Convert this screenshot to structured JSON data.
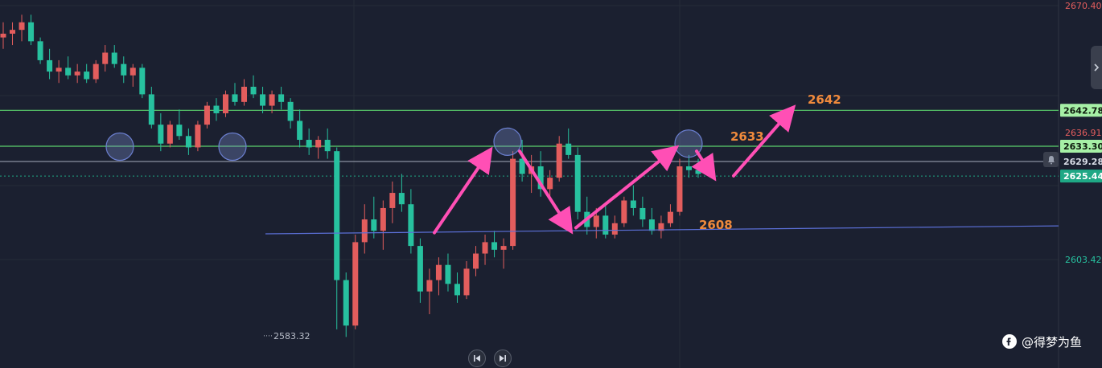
{
  "chart_data": {
    "type": "candlestick",
    "instrument_price_scale": {
      "ylim": [
        2578,
        2672
      ]
    },
    "price_axis_ticks": [
      {
        "value": 2670.4,
        "label": "2670.40",
        "color": "#e35d5d"
      },
      {
        "value": 2636.91,
        "label": "2636.91",
        "color": "#e35d5d"
      },
      {
        "value": 2603.42,
        "label": "2603.42",
        "color": "#27c19f"
      }
    ],
    "price_tags": [
      {
        "value": 2642.78,
        "label": "2642.78",
        "bg": "#a6f0a6",
        "fg": "#0d1a0d"
      },
      {
        "value": 2633.3,
        "label": "2633.30",
        "bg": "#a6f0a6",
        "fg": "#0d1a0d"
      },
      {
        "value": 2629.28,
        "label": "2629.28",
        "bg": "#1b2030",
        "fg": "#d8dce6"
      },
      {
        "value": 2625.44,
        "label": "2625.44",
        "bg": "#1fa885",
        "fg": "#ffffff"
      }
    ],
    "horizontal_levels": [
      {
        "value": 2642.78,
        "color": "#5bd06b"
      },
      {
        "value": 2633.3,
        "color": "#5bd06b"
      },
      {
        "value": 2629.28,
        "color": "#8a90a0"
      }
    ],
    "current_price_line": {
      "value": 2625.44,
      "color": "#1fa885"
    },
    "low_marker": {
      "value": 2583.32,
      "label": "2583.32"
    },
    "trendline": {
      "from": {
        "bar": 0,
        "price": 2610.2
      },
      "to": {
        "bar": 1,
        "price": 2612.3
      },
      "color": "#5b6fd6"
    },
    "annotations": [
      {
        "text": "2642",
        "price": 2644.5
      },
      {
        "text": "2633",
        "price": 2634.8
      },
      {
        "text": "2608",
        "price": 2611.5
      }
    ],
    "annotation_color": "#f08a3c",
    "arrow_color": "#ff4fb5",
    "circle_markers": [
      {
        "price": 2633.2
      },
      {
        "price": 2633.2
      },
      {
        "price": 2634.5
      },
      {
        "price": 2634.0
      }
    ],
    "candles": {
      "up_color": "#e35d5d",
      "down_color": "#27c19f",
      "ohlc": [
        [
          2662,
          2666,
          2659,
          2663
        ],
        [
          2663,
          2666,
          2660,
          2664
        ],
        [
          2664,
          2668,
          2661,
          2666
        ],
        [
          2666,
          2668,
          2660,
          2661
        ],
        [
          2661,
          2662,
          2655,
          2656
        ],
        [
          2656,
          2659,
          2651,
          2653
        ],
        [
          2653,
          2656,
          2650,
          2654
        ],
        [
          2654,
          2657,
          2651,
          2652
        ],
        [
          2652,
          2655,
          2650,
          2653
        ],
        [
          2653,
          2655,
          2650,
          2651
        ],
        [
          2651,
          2656,
          2650,
          2655
        ],
        [
          2655,
          2660,
          2653,
          2658
        ],
        [
          2658,
          2660,
          2654,
          2655
        ],
        [
          2655,
          2657,
          2650,
          2652
        ],
        [
          2652,
          2655,
          2649,
          2654
        ],
        [
          2654,
          2655,
          2646,
          2647
        ],
        [
          2647,
          2649,
          2638,
          2639
        ],
        [
          2639,
          2642,
          2632,
          2634
        ],
        [
          2634,
          2640,
          2633,
          2639
        ],
        [
          2639,
          2643,
          2635,
          2636
        ],
        [
          2636,
          2638,
          2631,
          2633
        ],
        [
          2633,
          2640,
          2632,
          2639
        ],
        [
          2639,
          2645,
          2638,
          2644
        ],
        [
          2644,
          2646,
          2640,
          2642
        ],
        [
          2642,
          2648,
          2641,
          2647
        ],
        [
          2647,
          2650,
          2644,
          2645
        ],
        [
          2645,
          2651,
          2644,
          2649
        ],
        [
          2649,
          2652,
          2646,
          2647
        ],
        [
          2647,
          2649,
          2642,
          2644
        ],
        [
          2644,
          2648,
          2642,
          2647
        ],
        [
          2647,
          2649,
          2643,
          2645
        ],
        [
          2645,
          2646,
          2638,
          2640
        ],
        [
          2640,
          2643,
          2633,
          2635
        ],
        [
          2635,
          2638,
          2631,
          2633
        ],
        [
          2633,
          2636,
          2630,
          2635
        ],
        [
          2635,
          2638,
          2630,
          2632
        ],
        [
          2632,
          2633,
          2585,
          2598
        ],
        [
          2598,
          2600,
          2583,
          2586
        ],
        [
          2586,
          2610,
          2585,
          2608
        ],
        [
          2608,
          2618,
          2605,
          2614
        ],
        [
          2614,
          2620,
          2609,
          2611
        ],
        [
          2611,
          2619,
          2606,
          2617
        ],
        [
          2617,
          2624,
          2613,
          2621
        ],
        [
          2621,
          2626,
          2616,
          2618
        ],
        [
          2618,
          2622,
          2605,
          2607
        ],
        [
          2607,
          2609,
          2592,
          2595
        ],
        [
          2595,
          2601,
          2589,
          2598
        ],
        [
          2598,
          2604,
          2594,
          2602
        ],
        [
          2602,
          2605,
          2595,
          2597
        ],
        [
          2597,
          2600,
          2592,
          2594
        ],
        [
          2594,
          2603,
          2593,
          2601
        ],
        [
          2601,
          2607,
          2599,
          2605
        ],
        [
          2605,
          2610,
          2602,
          2608
        ],
        [
          2608,
          2611,
          2604,
          2606
        ],
        [
          2606,
          2609,
          2601,
          2607
        ],
        [
          2607,
          2632,
          2606,
          2630
        ],
        [
          2630,
          2635,
          2624,
          2626
        ],
        [
          2626,
          2631,
          2621,
          2628
        ],
        [
          2628,
          2632,
          2620,
          2622
        ],
        [
          2622,
          2627,
          2619,
          2625
        ],
        [
          2625,
          2636,
          2624,
          2634
        ],
        [
          2634,
          2638,
          2630,
          2631
        ],
        [
          2631,
          2633,
          2614,
          2616
        ],
        [
          2616,
          2620,
          2610,
          2612
        ],
        [
          2612,
          2617,
          2609,
          2615
        ],
        [
          2615,
          2618,
          2609,
          2610
        ],
        [
          2610,
          2615,
          2609,
          2613
        ],
        [
          2613,
          2620,
          2612,
          2619
        ],
        [
          2619,
          2623,
          2615,
          2617
        ],
        [
          2617,
          2620,
          2612,
          2614
        ],
        [
          2614,
          2617,
          2610,
          2611
        ],
        [
          2611,
          2615,
          2609,
          2613
        ],
        [
          2613,
          2618,
          2612,
          2616
        ],
        [
          2616,
          2630,
          2615,
          2628
        ],
        [
          2628,
          2631,
          2625,
          2627
        ],
        [
          2627,
          2630,
          2625,
          2626
        ]
      ]
    }
  },
  "watermark": {
    "text": "@得梦为鱼"
  },
  "icons": {
    "nav_prev": "skip-back-icon",
    "nav_next": "skip-forward-icon",
    "alert": "bell-icon",
    "panel_toggle": "chevron-right-icon"
  }
}
